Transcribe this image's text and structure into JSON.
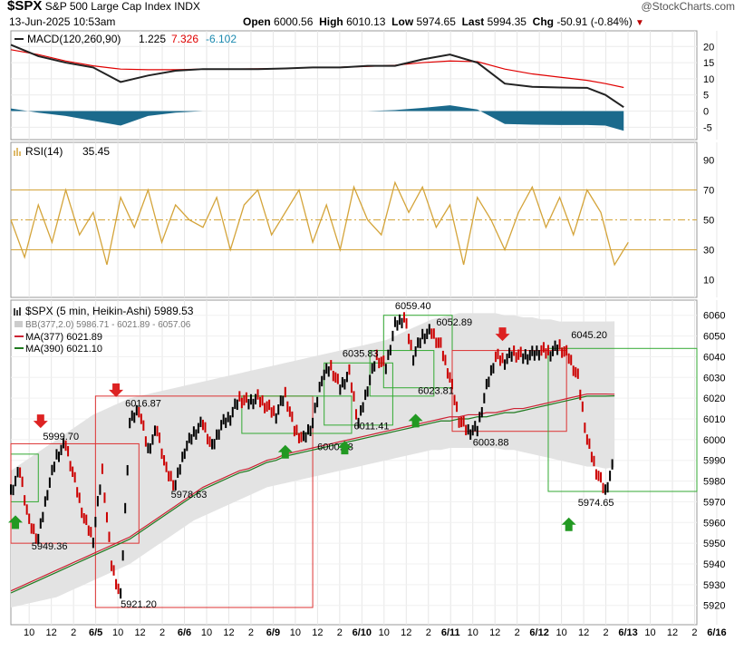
{
  "header": {
    "symbol": "$SPX",
    "name": "S&P 500 Large Cap Index",
    "exchange": "INDX",
    "date": "13-Jun-2025 10:53am",
    "watermark": "@StockCharts.com",
    "open_label": "Open",
    "open": "6000.56",
    "high_label": "High",
    "high": "6010.13",
    "low_label": "Low",
    "low": "5974.65",
    "last_label": "Last",
    "last": "5994.35",
    "chg_label": "Chg",
    "chg": "-50.91 (-0.84%)"
  },
  "colors": {
    "macd_line": "#222222",
    "signal_line": "#e00000",
    "histogram": "#1b6a8c",
    "rsi_line": "#d4a43a",
    "price_up": "#000000",
    "price_down": "#cc0000",
    "ma377": "#cc2233",
    "ma390": "#1f7a1f",
    "bb_band": "#e3e3e3",
    "box_red": "#dd3333",
    "box_green": "#33aa33"
  },
  "chart_data": [
    {
      "type": "area",
      "panel": "MACD",
      "legend": {
        "name": "MACD(120,260,90)",
        "macd": "1.225",
        "signal": "7.326",
        "hist": "-6.102"
      },
      "ylim": [
        -8,
        24
      ],
      "y_ticks": [
        "20",
        "15",
        "10",
        "5",
        "0",
        "-5"
      ],
      "x": [
        0,
        12,
        24,
        36,
        48,
        60,
        72,
        84,
        96,
        108,
        120,
        132,
        144,
        156,
        168,
        180,
        192,
        204,
        216,
        228,
        240,
        252,
        260,
        268
      ],
      "series": [
        {
          "name": "MACD",
          "values": [
            20.5,
            17,
            15,
            13.5,
            9,
            11,
            12.5,
            13,
            13,
            13,
            13.2,
            13.5,
            13.5,
            14,
            14,
            16,
            17.5,
            15,
            8.5,
            7.5,
            7.3,
            7.2,
            5,
            1.2
          ]
        },
        {
          "name": "Signal",
          "values": [
            19,
            17.5,
            15.5,
            14,
            13,
            12.8,
            12.8,
            13,
            13,
            13.1,
            13.2,
            13.5,
            13.6,
            13.8,
            14.2,
            15,
            15.5,
            15.3,
            13,
            11.5,
            10.5,
            9.5,
            8.5,
            7.3
          ]
        },
        {
          "name": "Histogram",
          "values": [
            0.8,
            -0.5,
            -1.5,
            -3,
            -4.5,
            -1.5,
            -0.5,
            0,
            0,
            0,
            0,
            0,
            0,
            0,
            0.3,
            1,
            1.8,
            0.5,
            -4,
            -4.2,
            -4.3,
            -4.3,
            -4.5,
            -6.1
          ]
        }
      ]
    },
    {
      "type": "line",
      "panel": "RSI",
      "legend": {
        "name": "RSI(14)",
        "value": "35.45"
      },
      "ylim": [
        0,
        100
      ],
      "y_ticks": [
        "90",
        "70",
        "50",
        "30",
        "10"
      ],
      "guides": [
        70,
        50,
        30
      ],
      "x": [
        0,
        6,
        12,
        18,
        24,
        30,
        36,
        42,
        48,
        54,
        60,
        66,
        72,
        78,
        84,
        90,
        96,
        102,
        108,
        114,
        120,
        126,
        132,
        138,
        144,
        150,
        156,
        162,
        168,
        174,
        180,
        186,
        192,
        198,
        204,
        210,
        216,
        222,
        228,
        234,
        240,
        246,
        252,
        258,
        264,
        270
      ],
      "series": [
        {
          "name": "RSI(14)",
          "values": [
            50,
            25,
            60,
            35,
            70,
            40,
            55,
            20,
            65,
            45,
            70,
            35,
            60,
            50,
            45,
            65,
            30,
            60,
            70,
            40,
            55,
            70,
            35,
            60,
            30,
            72,
            50,
            40,
            75,
            55,
            72,
            45,
            60,
            20,
            65,
            50,
            30,
            55,
            72,
            45,
            65,
            40,
            70,
            55,
            20,
            35
          ]
        }
      ]
    },
    {
      "type": "line",
      "panel": "Price",
      "legend": {
        "price": "$SPX (5 min, Heikin-Ashi) 5989.53",
        "bb": "BB(377,2.0) 5986.71 - 6021.89 - 6057.06",
        "ma377": "MA(377) 6021.89",
        "ma390": "MA(390) 6021.10"
      },
      "ylim": [
        5912,
        6066
      ],
      "y_ticks": [
        "6060",
        "6050",
        "6040",
        "6030",
        "6020",
        "6010",
        "6000",
        "5990",
        "5980",
        "5970",
        "5960",
        "5950",
        "5940",
        "5930",
        "5920"
      ],
      "x_tick_labels": [
        "10",
        "12",
        "2",
        "6/5",
        "10",
        "12",
        "2",
        "6/6",
        "10",
        "12",
        "2",
        "6/9",
        "10",
        "12",
        "2",
        "6/10",
        "10",
        "12",
        "2",
        "6/11",
        "10",
        "12",
        "2",
        "6/12",
        "10",
        "12",
        "2",
        "6/13",
        "10",
        "12",
        "2",
        "6/16"
      ],
      "x": [
        0,
        4,
        8,
        12,
        16,
        20,
        24,
        28,
        32,
        36,
        40,
        44,
        48,
        52,
        56,
        60,
        64,
        68,
        72,
        76,
        80,
        84,
        88,
        92,
        96,
        100,
        104,
        108,
        112,
        116,
        120,
        124,
        128,
        132,
        136,
        140,
        144,
        148,
        152,
        156,
        160,
        164,
        168,
        172,
        176,
        180,
        184,
        188,
        192,
        196,
        200,
        204,
        208,
        212,
        216,
        220,
        224,
        228,
        232,
        236,
        240,
        244,
        248,
        252,
        256,
        260,
        264
      ],
      "series": [
        {
          "name": "$SPX",
          "values": [
            5975,
            5985,
            5960,
            5952,
            5975,
            5992,
            5998,
            5980,
            5962,
            5952,
            5985,
            5940,
            5924,
            6008,
            6015,
            5995,
            6005,
            5985,
            5978,
            5995,
            6003,
            6008,
            5996,
            6007,
            6011,
            6020,
            6018,
            6020,
            6016,
            6012,
            6022,
            6005,
            6000,
            6008,
            6030,
            6035,
            6025,
            6032,
            6008,
            6025,
            6040,
            6035,
            6055,
            6059,
            6040,
            6050,
            6052,
            6045,
            6030,
            6010,
            6004,
            6005,
            6025,
            6040,
            6038,
            6042,
            6040,
            6041,
            6043,
            6042,
            6045,
            6040,
            6030,
            6000,
            5985,
            5975,
            5990
          ]
        },
        {
          "name": "MA(377)",
          "values": [
            5927,
            5929,
            5931,
            5933,
            5935,
            5937,
            5939,
            5941,
            5943,
            5945,
            5947,
            5949,
            5951,
            5953,
            5956,
            5959,
            5962,
            5965,
            5968,
            5971,
            5974,
            5977,
            5979,
            5981,
            5983,
            5985,
            5986,
            5988,
            5990,
            5991,
            5993,
            5994,
            5995,
            5996,
            5997,
            5998,
            5999,
            6000,
            6001,
            6002,
            6003,
            6004,
            6005,
            6006,
            6007,
            6008,
            6009,
            6010,
            6011,
            6011,
            6012,
            6012,
            6013,
            6013,
            6014,
            6015,
            6015,
            6016,
            6017,
            6018,
            6019,
            6020,
            6021,
            6022,
            6022,
            6022,
            6021.89
          ]
        },
        {
          "name": "MA(390)",
          "values": [
            5926,
            5928,
            5930,
            5932,
            5934,
            5936,
            5938,
            5940,
            5942,
            5944,
            5946,
            5948,
            5950,
            5952,
            5955,
            5958,
            5961,
            5964,
            5967,
            5970,
            5973,
            5976,
            5978,
            5980,
            5982,
            5984,
            5985,
            5987,
            5989,
            5990,
            5992,
            5993,
            5994,
            5995,
            5996,
            5997,
            5998,
            5999,
            6000,
            6001,
            6002,
            6003,
            6004,
            6005,
            6006,
            6007,
            6008,
            6009,
            6009,
            6010,
            6010,
            6011,
            6011,
            6012,
            6013,
            6013,
            6014,
            6015,
            6016,
            6017,
            6018,
            6019,
            6020,
            6021,
            6021,
            6021,
            6021.1
          ]
        },
        {
          "name": "BB upper",
          "values": [
            5985,
            5988,
            5991,
            5994,
            5997,
            6000,
            6003,
            6006,
            6009,
            6012,
            6014,
            6016,
            6018,
            6020,
            6021,
            6022,
            6023,
            6024,
            6025,
            6026,
            6027,
            6028,
            6029,
            6030,
            6031,
            6032,
            6033,
            6034,
            6035,
            6036,
            6037,
            6038,
            6039,
            6040,
            6041,
            6042,
            6043,
            6044,
            6045,
            6046,
            6047,
            6048,
            6050,
            6052,
            6054,
            6056,
            6058,
            6059,
            6060,
            6061,
            6061,
            6061,
            6061,
            6061,
            6060,
            6060,
            6059,
            6059,
            6058,
            6058,
            6057,
            6057,
            6057,
            6057,
            6057,
            6057,
            6057.06
          ]
        },
        {
          "name": "BB lower",
          "values": [
            5919,
            5920,
            5921,
            5922,
            5923,
            5924,
            5926,
            5928,
            5930,
            5932,
            5934,
            5936,
            5938,
            5940,
            5943,
            5946,
            5949,
            5952,
            5955,
            5958,
            5961,
            5963,
            5965,
            5967,
            5969,
            5971,
            5973,
            5975,
            5977,
            5978,
            5979,
            5980,
            5981,
            5982,
            5983,
            5984,
            5985,
            5986,
            5987,
            5988,
            5989,
            5990,
            5991,
            5992,
            5993,
            5994,
            5995,
            5995,
            5996,
            5996,
            5996,
            5996,
            5996,
            5996,
            5995,
            5995,
            5994,
            5993,
            5992,
            5991,
            5990,
            5989,
            5988,
            5987,
            5987,
            5986,
            5986.71
          ]
        }
      ],
      "annotations": [
        {
          "text": "5999.70",
          "x": 14,
          "y": 6000
        },
        {
          "text": "5949.36",
          "x": 9,
          "y": 5947
        },
        {
          "text": "6016.87",
          "x": 50,
          "y": 6016
        },
        {
          "text": "5921.20",
          "x": 48,
          "y": 5919
        },
        {
          "text": "5978.63",
          "x": 70,
          "y": 5972
        },
        {
          "text": "6000.28",
          "x": 134,
          "y": 5995
        },
        {
          "text": "6011.41",
          "x": 150,
          "y": 6005
        },
        {
          "text": "6035.83",
          "x": 145,
          "y": 6040
        },
        {
          "text": "6059.40",
          "x": 168,
          "y": 6063
        },
        {
          "text": "6052.89",
          "x": 186,
          "y": 6055
        },
        {
          "text": "6023.81",
          "x": 178,
          "y": 6022
        },
        {
          "text": "6003.88",
          "x": 202,
          "y": 5997
        },
        {
          "text": "6045.20",
          "x": 245,
          "y": 6049
        },
        {
          "text": "5974.65",
          "x": 248,
          "y": 5968
        }
      ]
    }
  ]
}
